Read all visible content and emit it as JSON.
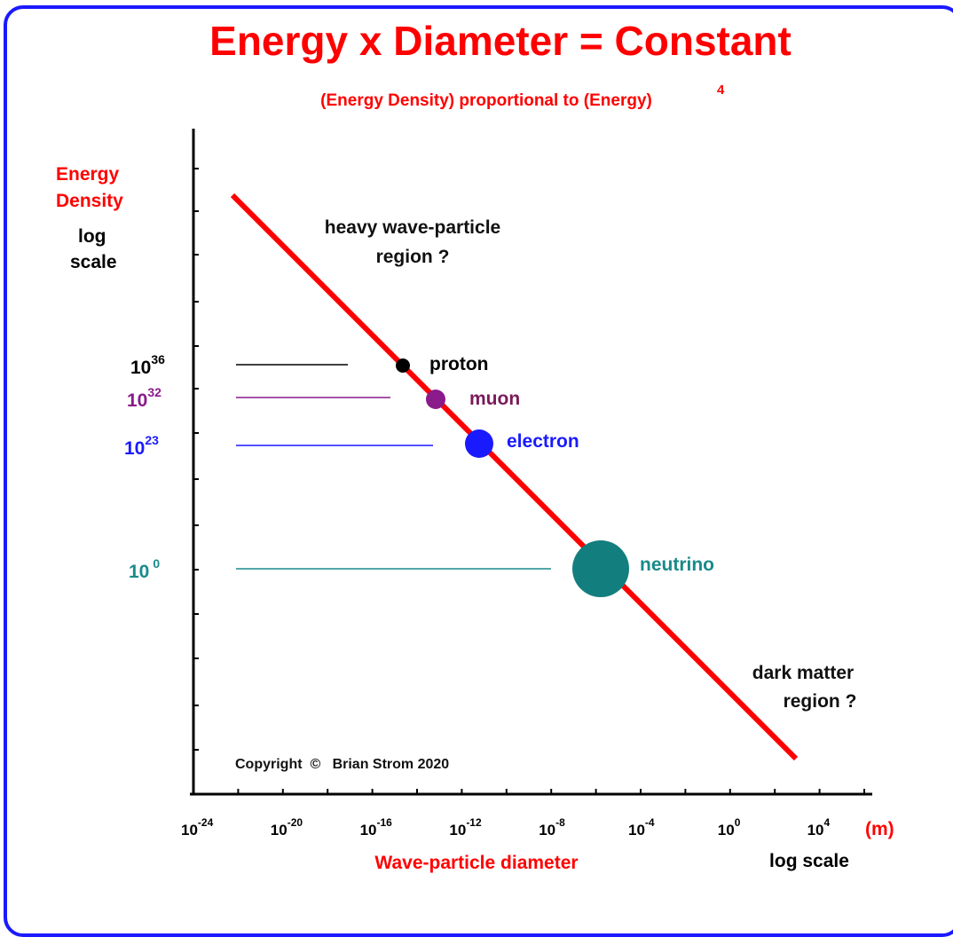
{
  "chart_data": {
    "type": "line",
    "title": "Energy x Diameter  =  Constant",
    "subtitle": "(Energy Density)  proportional to  (Energy)",
    "subtitle_superscript": "4",
    "xlabel": "Wave-particle diameter",
    "xlabel_right": "log scale",
    "x_unit": "(m)",
    "ylabel_lines": [
      "Energy",
      "Density"
    ],
    "ylabel_sub_lines": [
      "log",
      "scale"
    ],
    "x_scale": "log",
    "x_ticks": [
      {
        "base": "10",
        "exp": "-24",
        "value": -24
      },
      {
        "base": "10",
        "exp": "-20",
        "value": -20
      },
      {
        "base": "10",
        "exp": "-16",
        "value": -16
      },
      {
        "base": "10",
        "exp": "-12",
        "value": -12
      },
      {
        "base": "10",
        "exp": "-8",
        "value": -8
      },
      {
        "base": "10",
        "exp": "-4",
        "value": -4
      },
      {
        "base": "10",
        "exp": "0",
        "value": 0
      },
      {
        "base": "10",
        "exp": "4",
        "value": 4
      }
    ],
    "y_ticks": [
      {
        "base": "10",
        "exp": "36",
        "color": "#000000"
      },
      {
        "base": "10",
        "exp": "32",
        "color": "#8b1a8b"
      },
      {
        "base": "10",
        "exp": "23",
        "color": "#1a1aff"
      },
      {
        "base": "10",
        "exp": "0",
        "color": "#1a8a8a"
      }
    ],
    "particles": [
      {
        "name": "proton",
        "color": "#000000",
        "label_color": "#000000"
      },
      {
        "name": "muon",
        "color": "#8b1a8b",
        "label_color": "#7a1a5a"
      },
      {
        "name": "electron",
        "color": "#1a1aff",
        "label_color": "#1a1aff"
      },
      {
        "name": "neutrino",
        "color": "#137e7e",
        "label_color": "#1a8a8a"
      }
    ],
    "annotations": {
      "heavy": [
        "heavy wave-particle",
        "region ?"
      ],
      "dark": [
        "dark matter",
        "region ?"
      ],
      "copyright": "Copyright  ©   Brian Strom 2020"
    },
    "colors": {
      "accent": "#ff0000",
      "frame": "#1a1aff"
    },
    "legend": "none",
    "grid": false
  }
}
